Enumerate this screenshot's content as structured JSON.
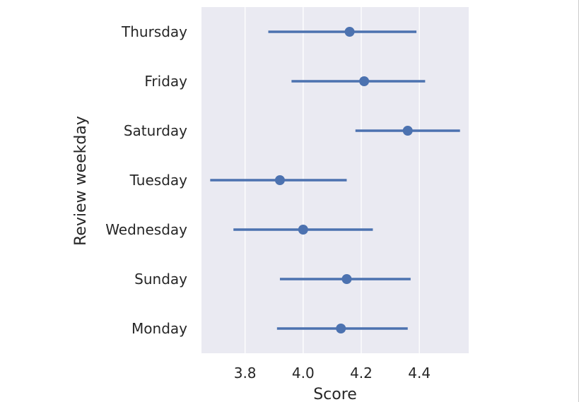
{
  "chart_data": {
    "type": "pointplot",
    "orientation": "horizontal",
    "title": "",
    "xlabel": "Score",
    "ylabel": "Review weekday",
    "xlim": [
      3.65,
      4.57
    ],
    "xticks": [
      3.8,
      4.0,
      4.2,
      4.4
    ],
    "xtick_labels": [
      "3.8",
      "4.0",
      "4.2",
      "4.4"
    ],
    "grid": "vertical",
    "categories": [
      "Thursday",
      "Friday",
      "Saturday",
      "Tuesday",
      "Wednesday",
      "Sunday",
      "Monday"
    ],
    "values": [
      4.16,
      4.21,
      4.36,
      3.92,
      4.0,
      4.15,
      4.13
    ],
    "ci_low": [
      3.88,
      3.96,
      4.18,
      3.68,
      3.76,
      3.92,
      3.91
    ],
    "ci_high": [
      4.39,
      4.42,
      4.54,
      4.15,
      4.24,
      4.37,
      4.36
    ],
    "colors": {
      "series": "#4c72b0",
      "background": "#eaeaf2",
      "grid": "#ffffff"
    }
  }
}
